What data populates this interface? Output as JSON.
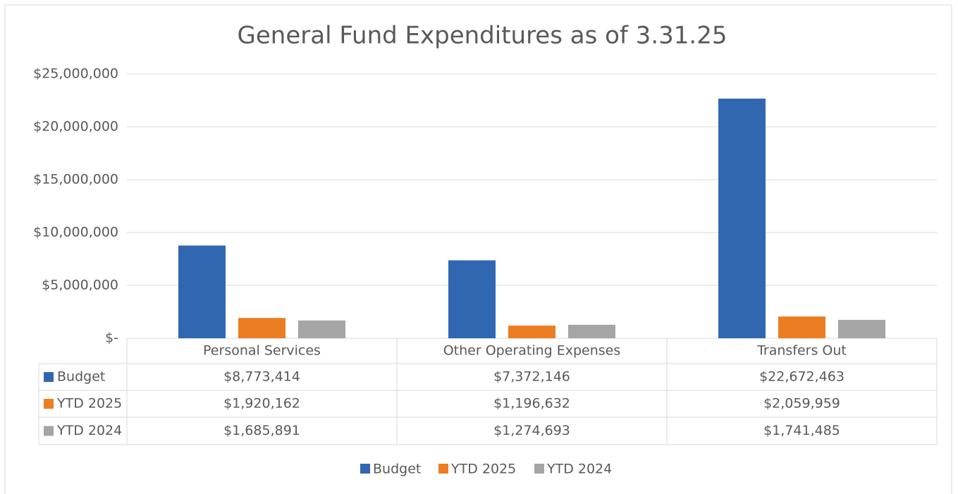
{
  "chart_data": {
    "type": "bar",
    "title": "General Fund Expenditures as of 3.31.25",
    "categories": [
      "Personal Services",
      "Other Operating Expenses",
      "Transfers Out"
    ],
    "series": [
      {
        "name": "Budget",
        "color": "#3167b1",
        "values": [
          8773414,
          7372146,
          22672463
        ],
        "value_labels": [
          "$8,773,414",
          "$7,372,146",
          "$22,672,463"
        ]
      },
      {
        "name": "YTD 2025",
        "color": "#ed7d22",
        "values": [
          1920162,
          1196632,
          2059959
        ],
        "value_labels": [
          "$1,920,162",
          "$1,196,632",
          "$2,059,959"
        ]
      },
      {
        "name": "YTD 2024",
        "color": "#a5a5a5",
        "values": [
          1685891,
          1274693,
          1741485
        ],
        "value_labels": [
          "$1,685,891",
          "$1,274,693",
          "$1,741,485"
        ]
      }
    ],
    "ylim": [
      0,
      25000000
    ],
    "yticks": [
      {
        "value": 0,
        "label": "$-"
      },
      {
        "value": 5000000,
        "label": "$5,000,000"
      },
      {
        "value": 10000000,
        "label": "$10,000,000"
      },
      {
        "value": 15000000,
        "label": "$15,000,000"
      },
      {
        "value": 20000000,
        "label": "$20,000,000"
      },
      {
        "value": 25000000,
        "label": "$25,000,000"
      }
    ],
    "grid": true,
    "legend": "bottom"
  }
}
